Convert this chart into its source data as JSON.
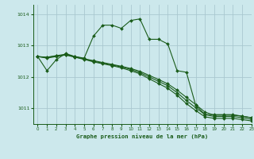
{
  "title": "Graphe pression niveau de la mer (hPa)",
  "background_color": "#cce8ec",
  "grid_color": "#aac8d0",
  "line_color": "#1a5c1a",
  "xlim": [
    -0.5,
    23
  ],
  "ylim": [
    1010.5,
    1014.3
  ],
  "yticks": [
    1011,
    1012,
    1013,
    1014
  ],
  "xticks": [
    0,
    1,
    2,
    3,
    4,
    5,
    6,
    7,
    8,
    9,
    10,
    11,
    12,
    13,
    14,
    15,
    16,
    17,
    18,
    19,
    20,
    21,
    22,
    23
  ],
  "series": [
    {
      "x": [
        0,
        1,
        2,
        3,
        4,
        5,
        6,
        7,
        8,
        9,
        10,
        11,
        12,
        13,
        14,
        15,
        16,
        17,
        18,
        19,
        20,
        21,
        22,
        23
      ],
      "y": [
        1012.65,
        1012.2,
        1012.55,
        1012.75,
        1012.65,
        1012.6,
        1013.3,
        1013.65,
        1013.65,
        1013.55,
        1013.8,
        1013.85,
        1013.2,
        1013.2,
        1013.05,
        1012.2,
        1012.15,
        1011.1,
        1010.8,
        1010.8,
        1010.8,
        1010.8,
        1010.75,
        1010.7
      ],
      "marker": "D",
      "markersize": 2.0,
      "linewidth": 0.8
    },
    {
      "x": [
        0,
        1,
        2,
        3,
        4,
        5,
        6,
        7,
        8,
        9,
        10,
        11,
        12,
        13,
        14,
        15,
        16,
        17,
        18,
        19,
        20,
        21,
        22,
        23
      ],
      "y": [
        1012.65,
        1012.63,
        1012.68,
        1012.72,
        1012.65,
        1012.58,
        1012.52,
        1012.46,
        1012.4,
        1012.34,
        1012.27,
        1012.18,
        1012.05,
        1011.92,
        1011.78,
        1011.58,
        1011.35,
        1011.12,
        1010.88,
        1010.78,
        1010.78,
        1010.78,
        1010.75,
        1010.7
      ],
      "marker": "D",
      "markersize": 2.0,
      "linewidth": 0.8
    },
    {
      "x": [
        0,
        1,
        2,
        3,
        4,
        5,
        6,
        7,
        8,
        9,
        10,
        11,
        12,
        13,
        14,
        15,
        16,
        17,
        18,
        19,
        20,
        21,
        22,
        23
      ],
      "y": [
        1012.65,
        1012.62,
        1012.67,
        1012.71,
        1012.64,
        1012.57,
        1012.5,
        1012.44,
        1012.38,
        1012.32,
        1012.24,
        1012.14,
        1012.0,
        1011.86,
        1011.72,
        1011.5,
        1011.25,
        1011.02,
        1010.8,
        1010.74,
        1010.74,
        1010.74,
        1010.7,
        1010.65
      ],
      "marker": "D",
      "markersize": 2.0,
      "linewidth": 0.8
    },
    {
      "x": [
        0,
        1,
        2,
        3,
        4,
        5,
        6,
        7,
        8,
        9,
        10,
        11,
        12,
        13,
        14,
        15,
        16,
        17,
        18,
        19,
        20,
        21,
        22,
        23
      ],
      "y": [
        1012.65,
        1012.6,
        1012.65,
        1012.7,
        1012.63,
        1012.56,
        1012.48,
        1012.42,
        1012.36,
        1012.29,
        1012.2,
        1012.1,
        1011.94,
        1011.79,
        1011.64,
        1011.42,
        1011.15,
        1010.93,
        1010.73,
        1010.68,
        1010.68,
        1010.68,
        1010.64,
        1010.6
      ],
      "marker": "D",
      "markersize": 2.0,
      "linewidth": 0.8
    }
  ]
}
